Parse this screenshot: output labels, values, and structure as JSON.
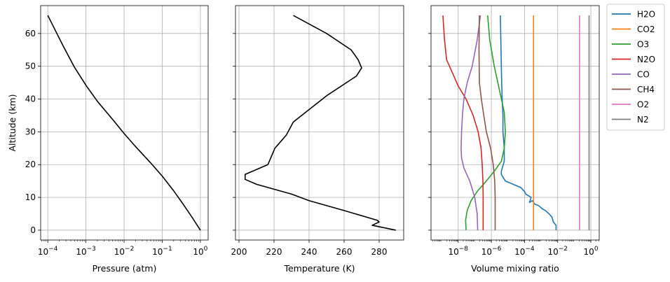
{
  "chart_data": [
    {
      "type": "line",
      "xlabel": "Pressure (atm)",
      "ylabel": "Altitude (km)",
      "xscale": "log",
      "xlim": [
        6.5e-05,
        1.6
      ],
      "ylim": [
        -3,
        68.5
      ],
      "xticks": [
        0.0001,
        0.001,
        0.01,
        0.1,
        1
      ],
      "xtick_labels": [
        {
          "base": "10",
          "exp": "−4"
        },
        {
          "base": "10",
          "exp": "−3"
        },
        {
          "base": "10",
          "exp": "−2"
        },
        {
          "base": "10",
          "exp": "−1"
        },
        {
          "base": "10",
          "exp": "0"
        }
      ],
      "yticks": [
        0,
        10,
        20,
        30,
        40,
        50,
        60
      ],
      "ytick_labels": [
        "0",
        "10",
        "20",
        "30",
        "40",
        "50",
        "60"
      ],
      "grid": true,
      "series": [
        {
          "color": "#000000",
          "x": [
            1.0,
            0.6,
            0.35,
            0.2,
            0.1,
            0.05,
            0.02,
            0.01,
            0.005,
            0.002,
            0.001,
            0.0005,
            0.00025,
            0.0001
          ],
          "y": [
            0,
            4,
            8,
            12,
            16.5,
            20.5,
            25.5,
            29.5,
            33.8,
            39.3,
            44.2,
            49.7,
            56.3,
            65.5
          ]
        }
      ]
    },
    {
      "type": "line",
      "xlabel": "Temperature (K)",
      "xlim": [
        198,
        294
      ],
      "ylim": [
        -3,
        68.5
      ],
      "xticks": [
        200,
        220,
        240,
        260,
        280
      ],
      "xtick_labels": [
        "200",
        "220",
        "240",
        "260",
        "280"
      ],
      "yticks": [
        0,
        10,
        20,
        30,
        40,
        50,
        60
      ],
      "grid": true,
      "series": [
        {
          "color": "#000000",
          "x": [
            289.5,
            276,
            280,
            279,
            260,
            240,
            230,
            220,
            210,
            203.5,
            203.5,
            216.5,
            220.5,
            227,
            231,
            250,
            267,
            270,
            268,
            264,
            250,
            231
          ],
          "y": [
            0,
            1.5,
            2.5,
            3,
            6,
            9,
            11,
            12.5,
            14,
            15.5,
            17,
            20,
            25,
            29,
            33,
            41,
            47,
            49.5,
            52,
            55,
            60,
            65.5
          ]
        }
      ]
    },
    {
      "type": "line",
      "xlabel": "Volume mixing ratio",
      "xscale": "log",
      "xlim": [
        2.3e-10,
        3.2
      ],
      "ylim": [
        -3,
        68.5
      ],
      "xticks": [
        1e-08,
        1e-06,
        0.0001,
        0.01,
        1
      ],
      "xtick_labels": [
        {
          "base": "10",
          "exp": "−8"
        },
        {
          "base": "10",
          "exp": "−6"
        },
        {
          "base": "10",
          "exp": "−4"
        },
        {
          "base": "10",
          "exp": "0"
        }
      ],
      "xtick_label_values": [
        1e-08,
        1e-06,
        0.0001,
        1
      ],
      "xtick_labels_full": [
        {
          "base": "10",
          "exp": "−8"
        },
        {
          "base": "10",
          "exp": "−6"
        },
        {
          "base": "10",
          "exp": "−4"
        },
        {
          "base": "10",
          "exp": "−2"
        },
        {
          "base": "10",
          "exp": "0"
        }
      ],
      "yticks": [
        0,
        10,
        20,
        30,
        40,
        50,
        60
      ],
      "grid": true,
      "legend": "outside-right-top",
      "series": [
        {
          "name": "H2O",
          "color": "#1f77b4",
          "x": [
            0.008,
            0.008,
            0.0055,
            0.0045,
            0.003,
            0.0018,
            0.0012,
            0.0007,
            0.0004,
            0.0003,
            0.0002,
            0.00025,
            0.00012,
            0.0001,
            6e-05,
            7e-06,
            4e-06,
            4e-06,
            6e-06,
            6e-06,
            5e-06,
            5e-06,
            4.5e-06,
            4.2e-06,
            4e-06,
            3.5e-06
          ],
          "y": [
            0,
            1.5,
            2.5,
            4,
            5,
            6,
            6.5,
            7.5,
            8,
            9,
            8.5,
            10,
            11,
            11.8,
            13,
            15,
            17,
            18,
            21,
            25,
            30,
            35,
            40,
            45,
            50,
            65.5
          ]
        },
        {
          "name": "CO2",
          "color": "#ff7f0e",
          "x": [
            0.00035,
            0.00035
          ],
          "y": [
            0,
            65.5
          ]
        },
        {
          "name": "O3",
          "color": "#2ca02c",
          "x": [
            3e-08,
            2.8e-08,
            3.5e-08,
            6e-08,
            1.5e-07,
            5e-07,
            1.5e-06,
            4e-06,
            6e-06,
            7e-06,
            6e-06,
            3e-06,
            1.5e-06,
            8e-07,
            6e-07
          ],
          "y": [
            0,
            3,
            6,
            9,
            12,
            15,
            18,
            21,
            25,
            30,
            36,
            43,
            50,
            58,
            65.5
          ]
        },
        {
          "name": "N2O",
          "color": "#d62728",
          "x": [
            3.2e-07,
            3.2e-07,
            3.1e-07,
            2.8e-07,
            2.4e-07,
            1.6e-07,
            8e-08,
            3e-08,
            1e-08,
            4.5e-09,
            2e-09,
            1.5e-09,
            1.2e-09
          ],
          "y": [
            0,
            10,
            15,
            20,
            25,
            30,
            35,
            40,
            44,
            48,
            52,
            58,
            65.5
          ]
        },
        {
          "name": "CO",
          "color": "#9467bd",
          "x": [
            1.5e-07,
            1.4e-07,
            1e-07,
            5e-08,
            2.2e-08,
            1.6e-08,
            1.5e-08,
            1.6e-08,
            1.8e-08,
            2.2e-08,
            3.5e-08,
            7e-08,
            1.4e-07,
            2.2e-07
          ],
          "y": [
            0,
            5,
            10,
            15,
            19,
            22,
            25,
            30,
            35,
            40,
            45,
            50,
            58,
            65.5
          ]
        },
        {
          "name": "CH4",
          "color": "#8c564b",
          "x": [
            1.7e-06,
            1.7e-06,
            1.6e-06,
            1.3e-06,
            9e-07,
            5e-07,
            3.5e-07,
            2.5e-07,
            1.9e-07,
            1.8e-07,
            1.9e-07
          ],
          "y": [
            0,
            10,
            15,
            20,
            25,
            30,
            35,
            40,
            45,
            55,
            65.5
          ]
        },
        {
          "name": "O2",
          "color": "#e377c2",
          "x": [
            0.209,
            0.209
          ],
          "y": [
            0,
            65.5
          ]
        },
        {
          "name": "N2",
          "color": "#7f7f7f",
          "x": [
            0.781,
            0.781
          ],
          "y": [
            0,
            65.5
          ]
        }
      ]
    }
  ]
}
